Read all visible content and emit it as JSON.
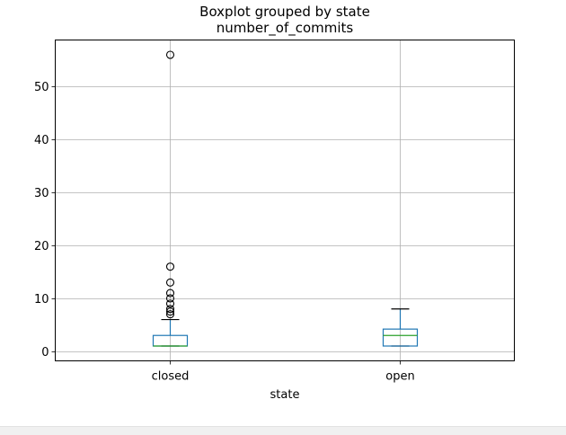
{
  "chart_data": {
    "type": "boxplot",
    "title": "Boxplot grouped by state",
    "subtitle": "number_of_commits",
    "xlabel": "state",
    "ylabel": "",
    "categories": [
      "closed",
      "open"
    ],
    "ylim": [
      -1.8,
      58.8
    ],
    "yticks": [
      0,
      10,
      20,
      30,
      40,
      50
    ],
    "grid": true,
    "boxes": [
      {
        "category": "closed",
        "whisker_low": 1,
        "q1": 1,
        "median": 1,
        "q3": 3,
        "whisker_high": 6,
        "fliers": [
          7,
          7.5,
          8,
          9,
          10,
          11,
          13,
          16,
          56
        ]
      },
      {
        "category": "open",
        "whisker_low": 1,
        "q1": 1,
        "median": 3,
        "q3": 4.2,
        "whisker_high": 8,
        "fliers": []
      }
    ],
    "colors": {
      "box": "#1f77b4",
      "median": "#2ca02c",
      "whisker": "#1f77b4",
      "cap": "#000000",
      "grid": "#b0b0b0",
      "flier": "#000000"
    }
  }
}
